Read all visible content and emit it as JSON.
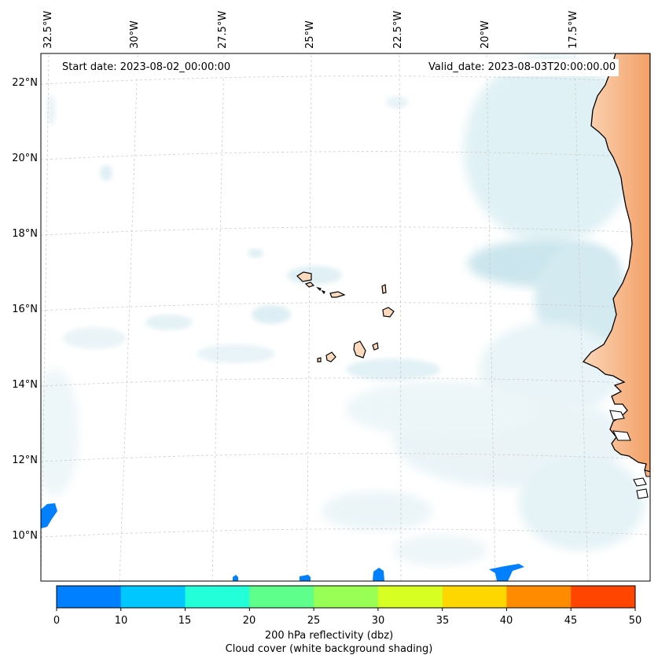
{
  "map": {
    "start_date_label": "Start date: 2023-08-02_00:00:00",
    "valid_date_label": "Valid_date: 2023-08-03T20:00:00.00",
    "longitude_labels": [
      "32.5°W",
      "30°W",
      "27.5°W",
      "25°W",
      "22.5°W",
      "20°W",
      "17.5°W"
    ],
    "latitude_labels": [
      "22°N",
      "20°N",
      "18°N",
      "16°N",
      "14°N",
      "12°N",
      "10°N"
    ],
    "land_color": "#f5a66b",
    "cloud_color": "#cfe8ef",
    "gridline_color": "#cccccc"
  },
  "colorbar": {
    "ticks": [
      "0",
      "10",
      "15",
      "20",
      "25",
      "30",
      "35",
      "40",
      "45",
      "50"
    ],
    "colors": [
      "#0080ff",
      "#00c8ff",
      "#22ffd9",
      "#5eff8a",
      "#99ff55",
      "#d8ff22",
      "#ffd700",
      "#ff8c00",
      "#ff4500"
    ],
    "label_line1": "200 hPa reflectivity (dbz)",
    "label_line2": "Cloud cover (white background shading)"
  }
}
